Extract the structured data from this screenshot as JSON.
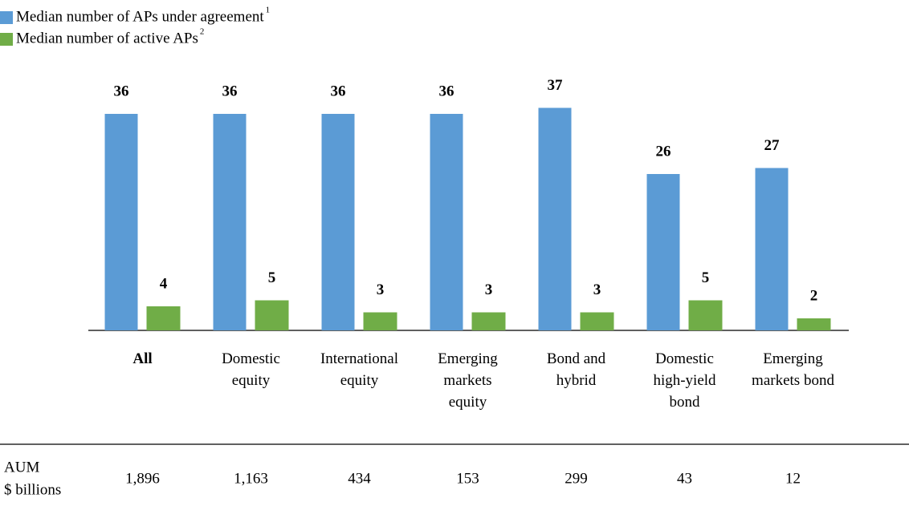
{
  "chart_data": {
    "type": "bar",
    "categories": [
      "All",
      "Domestic equity",
      "International equity",
      "Emerging markets equity",
      "Bond and hybrid",
      "Domestic high-yield bond",
      "Emerging markets bond"
    ],
    "series": [
      {
        "name": "Median number of APs under agreement",
        "note": "1",
        "color": "#5b9bd5",
        "values": [
          36,
          36,
          36,
          36,
          37,
          26,
          27
        ]
      },
      {
        "name": "Median number of active APs",
        "note": "2",
        "color": "#70ad47",
        "values": [
          4,
          5,
          3,
          3,
          3,
          5,
          2
        ]
      }
    ],
    "ylim": [
      0,
      40
    ],
    "aum": {
      "label": "AUM",
      "sublabel": "$ billions",
      "values": [
        "1,896",
        "1,163",
        "434",
        "153",
        "299",
        "43",
        "12"
      ]
    }
  }
}
